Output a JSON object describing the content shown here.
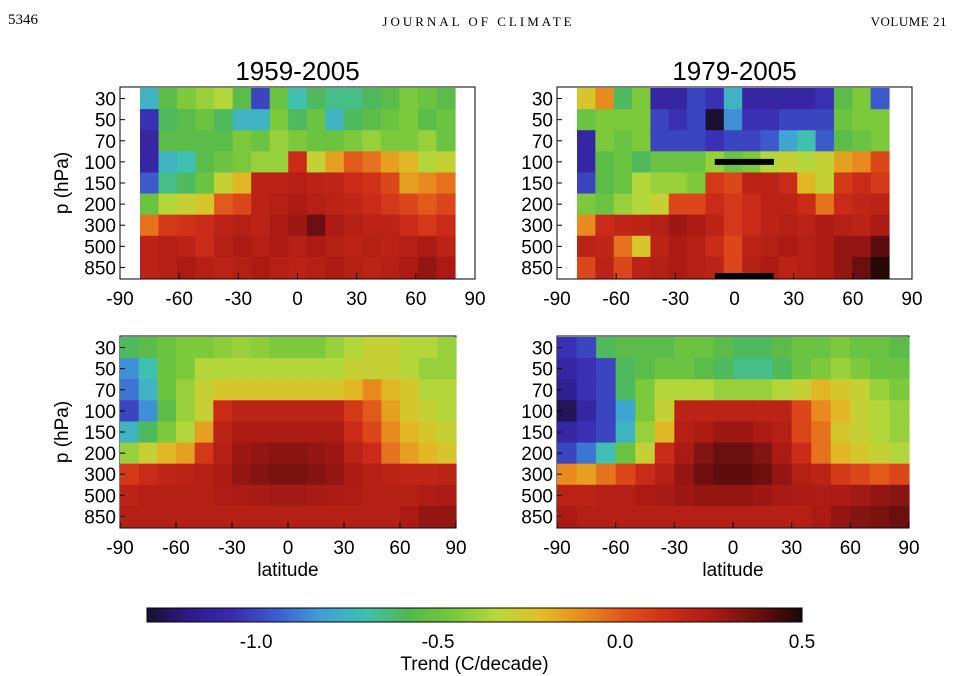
{
  "header": {
    "page_number": "5346",
    "journal": "JOURNAL OF CLIMATE",
    "volume": "VOLUME 21"
  },
  "colorbar": {
    "label": "Trend (C/decade)",
    "range": [
      -1.3,
      0.5
    ],
    "ticks": [
      "-1.0",
      "-0.5",
      "0.0",
      "0.5"
    ],
    "tick_values": [
      -1.0,
      -0.5,
      0.0,
      0.5
    ],
    "palette": [
      "#1a1030",
      "#2e1a8a",
      "#3a2cb0",
      "#3d5ed0",
      "#3fa0d8",
      "#3fc0b0",
      "#52b84e",
      "#78c83c",
      "#b8d83a",
      "#e0c028",
      "#e88a1e",
      "#e0501c",
      "#cc2c18",
      "#a81a14",
      "#6a0f0f",
      "#1a0606"
    ]
  },
  "chart_data": [
    {
      "type": "heatmap",
      "title": "1959-2005",
      "xlabel": "",
      "ylabel": "p (hPa)",
      "x_ticks": [
        "-90",
        "-60",
        "-30",
        "0",
        "30",
        "60",
        "90"
      ],
      "xlim": [
        -90,
        90
      ],
      "y_ticks": [
        "30",
        "50",
        "70",
        "100",
        "150",
        "200",
        "300",
        "500",
        "850"
      ],
      "latitudes": [
        -80,
        -70,
        -60,
        -50,
        -40,
        -30,
        -20,
        -10,
        0,
        10,
        20,
        30,
        40,
        50,
        60,
        70,
        80
      ],
      "pressure_levels": [
        30,
        50,
        70,
        100,
        150,
        200,
        300,
        500,
        850
      ],
      "values": [
        [
          -0.75,
          -0.55,
          -0.45,
          -0.4,
          -0.35,
          -0.55,
          -1.0,
          -0.5,
          -0.7,
          -0.6,
          -0.65,
          -0.65,
          -0.6,
          -0.55,
          -0.45,
          -0.5,
          -0.55
        ],
        [
          -1.05,
          -0.6,
          -0.55,
          -0.5,
          -0.6,
          -0.75,
          -0.75,
          -0.45,
          -0.6,
          -0.5,
          -0.75,
          -0.6,
          -0.55,
          -0.5,
          -0.45,
          -0.55,
          -0.5
        ],
        [
          -1.1,
          -0.55,
          -0.55,
          -0.55,
          -0.55,
          -0.45,
          -0.5,
          -0.4,
          -0.45,
          -0.5,
          -0.5,
          -0.45,
          -0.4,
          -0.45,
          -0.45,
          -0.4,
          -0.5
        ],
        [
          -1.1,
          -0.75,
          -0.7,
          -0.55,
          -0.5,
          -0.45,
          -0.4,
          -0.4,
          0.15,
          -0.3,
          -0.15,
          0.0,
          -0.05,
          -0.15,
          -0.2,
          -0.35,
          -0.3
        ],
        [
          -0.95,
          -0.65,
          -0.6,
          -0.5,
          -0.3,
          -0.2,
          0.2,
          0.2,
          0.22,
          0.2,
          0.18,
          0.15,
          0.12,
          0.05,
          -0.15,
          -0.1,
          -0.05
        ],
        [
          -0.5,
          -0.35,
          -0.3,
          -0.25,
          0.0,
          0.05,
          0.2,
          0.22,
          0.25,
          0.22,
          0.2,
          0.18,
          0.15,
          0.1,
          0.05,
          0.0,
          0.05
        ],
        [
          -0.05,
          0.1,
          0.12,
          0.15,
          0.2,
          0.22,
          0.2,
          0.25,
          0.28,
          0.38,
          0.25,
          0.22,
          0.2,
          0.2,
          0.15,
          0.1,
          0.15
        ],
        [
          0.2,
          0.22,
          0.2,
          0.15,
          0.22,
          0.25,
          0.22,
          0.25,
          0.22,
          0.25,
          0.22,
          0.2,
          0.22,
          0.2,
          0.22,
          0.25,
          0.2
        ],
        [
          0.2,
          0.22,
          0.25,
          0.22,
          0.2,
          0.22,
          0.25,
          0.22,
          0.2,
          0.22,
          0.25,
          0.22,
          0.2,
          0.22,
          0.25,
          0.3,
          0.25
        ]
      ]
    },
    {
      "type": "heatmap",
      "title": "1979-2005",
      "xlabel": "",
      "ylabel": "",
      "x_ticks": [
        "-90",
        "-60",
        "-30",
        "0",
        "30",
        "60",
        "90"
      ],
      "xlim": [
        -90,
        90
      ],
      "y_ticks": [
        "30",
        "50",
        "70",
        "100",
        "150",
        "200",
        "300",
        "500",
        "850"
      ],
      "latitudes": [
        -80,
        -70,
        -60,
        -50,
        -40,
        -30,
        -20,
        -10,
        0,
        10,
        20,
        30,
        40,
        50,
        60,
        70,
        80
      ],
      "pressure_levels": [
        30,
        50,
        70,
        100,
        150,
        200,
        300,
        500,
        850
      ],
      "values": [
        [
          -0.25,
          -0.1,
          -0.6,
          -0.45,
          -1.1,
          -1.1,
          -1.0,
          -1.05,
          -0.75,
          -1.1,
          -1.1,
          -1.1,
          -1.1,
          -1.05,
          -0.55,
          -0.45,
          -0.95
        ],
        [
          -0.5,
          -0.45,
          -0.45,
          -0.45,
          -1.0,
          -1.05,
          -1.0,
          -1.3,
          -0.85,
          -1.05,
          -1.05,
          -1.0,
          -1.0,
          -1.0,
          -0.5,
          -0.45,
          -0.45
        ],
        [
          -1.1,
          -0.45,
          -0.5,
          -0.45,
          -1.0,
          -1.0,
          -1.0,
          -1.05,
          -1.0,
          -1.0,
          -0.95,
          -0.8,
          -0.7,
          -0.95,
          -0.55,
          -0.5,
          -0.45
        ],
        [
          -1.1,
          -0.55,
          -0.5,
          -0.6,
          -0.5,
          -0.5,
          -0.5,
          -0.4,
          -0.5,
          -0.45,
          -0.35,
          -0.3,
          -0.35,
          -0.3,
          -0.15,
          -0.1,
          0.05
        ],
        [
          -1.0,
          -0.55,
          -0.5,
          -0.35,
          -0.4,
          -0.4,
          -0.45,
          0.1,
          0.05,
          0.2,
          0.2,
          0.15,
          -0.2,
          -0.3,
          0.1,
          0.15,
          0.1
        ],
        [
          -0.45,
          -0.5,
          -0.4,
          -0.35,
          -0.3,
          0.05,
          0.05,
          0.15,
          0.1,
          0.15,
          0.2,
          0.2,
          0.15,
          -0.05,
          0.15,
          0.18,
          0.2
        ],
        [
          -0.1,
          0.15,
          0.18,
          0.2,
          0.22,
          0.28,
          0.25,
          0.2,
          0.1,
          0.15,
          0.2,
          0.22,
          0.2,
          0.25,
          0.22,
          0.2,
          0.25
        ],
        [
          0.2,
          0.18,
          -0.05,
          -0.25,
          0.2,
          0.25,
          0.22,
          0.15,
          0.05,
          0.2,
          0.22,
          0.25,
          0.22,
          0.25,
          0.3,
          0.3,
          0.4
        ],
        [
          0.05,
          0.2,
          0.05,
          0.2,
          0.22,
          0.25,
          0.22,
          0.2,
          0.05,
          0.22,
          0.25,
          0.2,
          0.22,
          0.25,
          0.3,
          0.38,
          0.48
        ]
      ],
      "markers": [
        {
          "name": "tropical-upper-bar",
          "lat_range": [
            -10,
            20
          ],
          "level": 100
        },
        {
          "name": "tropical-surface-bar",
          "lat_range": [
            -10,
            20
          ],
          "level": 850
        }
      ]
    },
    {
      "type": "heatmap",
      "title": "",
      "xlabel": "latitude",
      "ylabel": "p (hPa)",
      "x_ticks": [
        "-90",
        "-60",
        "-30",
        "0",
        "30",
        "60",
        "90"
      ],
      "xlim": [
        -90,
        90
      ],
      "y_ticks": [
        "30",
        "50",
        "70",
        "100",
        "150",
        "200",
        "300",
        "500",
        "850"
      ],
      "latitudes": [
        -85,
        -75,
        -65,
        -55,
        -45,
        -35,
        -25,
        -15,
        -5,
        5,
        15,
        25,
        35,
        45,
        55,
        65,
        75,
        85
      ],
      "pressure_levels": [
        30,
        50,
        70,
        100,
        150,
        200,
        300,
        500,
        850
      ],
      "values": [
        [
          -0.6,
          -0.55,
          -0.5,
          -0.45,
          -0.45,
          -0.42,
          -0.4,
          -0.42,
          -0.45,
          -0.45,
          -0.45,
          -0.4,
          -0.35,
          -0.3,
          -0.3,
          -0.35,
          -0.35,
          -0.4
        ],
        [
          -0.85,
          -0.7,
          -0.5,
          -0.45,
          -0.35,
          -0.35,
          -0.35,
          -0.35,
          -0.35,
          -0.35,
          -0.35,
          -0.35,
          -0.3,
          -0.3,
          -0.3,
          -0.35,
          -0.4,
          -0.4
        ],
        [
          -0.9,
          -0.75,
          -0.5,
          -0.4,
          -0.3,
          -0.25,
          -0.25,
          -0.25,
          -0.25,
          -0.25,
          -0.25,
          -0.25,
          -0.2,
          -0.1,
          -0.2,
          -0.25,
          -0.35,
          -0.35
        ],
        [
          -1.0,
          -0.85,
          -0.55,
          -0.4,
          -0.3,
          0.15,
          0.2,
          0.2,
          0.2,
          0.2,
          0.2,
          0.2,
          0.1,
          0.0,
          -0.15,
          -0.25,
          -0.3,
          -0.35
        ],
        [
          -0.75,
          -0.6,
          -0.45,
          -0.35,
          -0.15,
          0.2,
          0.25,
          0.25,
          0.25,
          0.25,
          0.25,
          0.25,
          0.15,
          0.05,
          -0.1,
          -0.2,
          -0.25,
          -0.3
        ],
        [
          -0.4,
          -0.3,
          -0.2,
          -0.15,
          0.1,
          0.22,
          0.28,
          0.3,
          0.32,
          0.32,
          0.3,
          0.28,
          0.2,
          0.15,
          -0.05,
          -0.15,
          -0.2,
          -0.25
        ],
        [
          0.1,
          0.15,
          0.18,
          0.2,
          0.22,
          0.25,
          0.3,
          0.33,
          0.35,
          0.35,
          0.33,
          0.3,
          0.25,
          0.22,
          0.2,
          0.18,
          0.18,
          0.2
        ],
        [
          0.2,
          0.22,
          0.22,
          0.22,
          0.22,
          0.24,
          0.25,
          0.26,
          0.27,
          0.27,
          0.26,
          0.25,
          0.24,
          0.22,
          0.22,
          0.22,
          0.24,
          0.25
        ],
        [
          0.22,
          0.22,
          0.22,
          0.22,
          0.22,
          0.22,
          0.22,
          0.22,
          0.22,
          0.22,
          0.22,
          0.22,
          0.22,
          0.22,
          0.22,
          0.25,
          0.3,
          0.3
        ]
      ]
    },
    {
      "type": "heatmap",
      "title": "",
      "xlabel": "latitude",
      "ylabel": "",
      "x_ticks": [
        "-90",
        "-60",
        "-30",
        "0",
        "30",
        "60",
        "90"
      ],
      "xlim": [
        -90,
        90
      ],
      "y_ticks": [
        "30",
        "50",
        "70",
        "100",
        "150",
        "200",
        "300",
        "500",
        "850"
      ],
      "latitudes": [
        -85,
        -75,
        -65,
        -55,
        -45,
        -35,
        -25,
        -15,
        -5,
        5,
        15,
        25,
        35,
        45,
        55,
        65,
        75,
        85
      ],
      "pressure_levels": [
        30,
        50,
        70,
        100,
        150,
        200,
        300,
        500,
        850
      ],
      "values": [
        [
          -1.05,
          -1.0,
          -0.6,
          -0.55,
          -0.55,
          -0.55,
          -0.5,
          -0.5,
          -0.55,
          -0.6,
          -0.6,
          -0.55,
          -0.5,
          -0.5,
          -0.45,
          -0.5,
          -0.5,
          -0.55
        ],
        [
          -1.1,
          -1.05,
          -1.0,
          -0.6,
          -0.55,
          -0.5,
          -0.5,
          -0.55,
          -0.6,
          -0.65,
          -0.65,
          -0.6,
          -0.5,
          -0.45,
          -0.4,
          -0.45,
          -0.5,
          -0.5
        ],
        [
          -1.15,
          -1.05,
          -1.0,
          -0.6,
          -0.45,
          -0.35,
          -0.35,
          -0.35,
          -0.4,
          -0.4,
          -0.4,
          -0.35,
          -0.3,
          -0.2,
          -0.25,
          -0.3,
          -0.4,
          -0.45
        ],
        [
          -1.25,
          -1.1,
          -1.0,
          -0.8,
          -0.45,
          -0.3,
          0.2,
          0.2,
          0.2,
          0.2,
          0.2,
          0.2,
          0.05,
          -0.1,
          -0.2,
          -0.3,
          -0.35,
          -0.4
        ],
        [
          -1.1,
          -1.05,
          -1.0,
          -0.75,
          -0.4,
          -0.2,
          0.22,
          0.25,
          0.28,
          0.28,
          0.25,
          0.22,
          0.05,
          -0.05,
          -0.25,
          -0.3,
          -0.35,
          -0.4
        ],
        [
          -1.0,
          -0.9,
          -0.7,
          -0.5,
          -0.3,
          0.15,
          0.25,
          0.33,
          0.38,
          0.38,
          0.33,
          0.25,
          0.15,
          -0.05,
          -0.2,
          -0.25,
          -0.3,
          -0.35
        ],
        [
          -0.1,
          -0.15,
          -0.05,
          0.05,
          0.15,
          0.22,
          0.3,
          0.37,
          0.4,
          0.4,
          0.37,
          0.3,
          0.22,
          0.2,
          0.1,
          0.05,
          0.0,
          0.05
        ],
        [
          0.2,
          0.2,
          0.22,
          0.22,
          0.25,
          0.26,
          0.28,
          0.3,
          0.3,
          0.3,
          0.28,
          0.26,
          0.25,
          0.24,
          0.25,
          0.27,
          0.3,
          0.32
        ],
        [
          0.25,
          0.22,
          0.22,
          0.22,
          0.22,
          0.22,
          0.22,
          0.22,
          0.22,
          0.22,
          0.22,
          0.22,
          0.22,
          0.25,
          0.3,
          0.33,
          0.35,
          0.38
        ]
      ]
    }
  ]
}
